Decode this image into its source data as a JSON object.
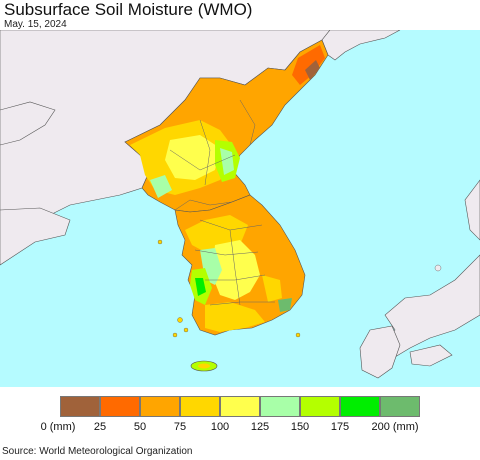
{
  "header": {
    "title": "Subsurface Soil Moisture (WMO)",
    "date": "May. 15, 2024"
  },
  "legend": {
    "colors": [
      "#a0623a",
      "#ff6a00",
      "#ffa500",
      "#ffd700",
      "#ffff4d",
      "#a8ffa8",
      "#b4ff00",
      "#00ee00",
      "#6dbb6d"
    ],
    "labels": [
      "0 (mm)",
      "25",
      "50",
      "75",
      "100",
      "125",
      "150",
      "175",
      "200 (mm)"
    ]
  },
  "colors": {
    "sea": "#b5fbff",
    "land_outside": "#efeaef",
    "border": "#555555"
  },
  "footer": {
    "source": "Source: World Meteorological Organization"
  }
}
